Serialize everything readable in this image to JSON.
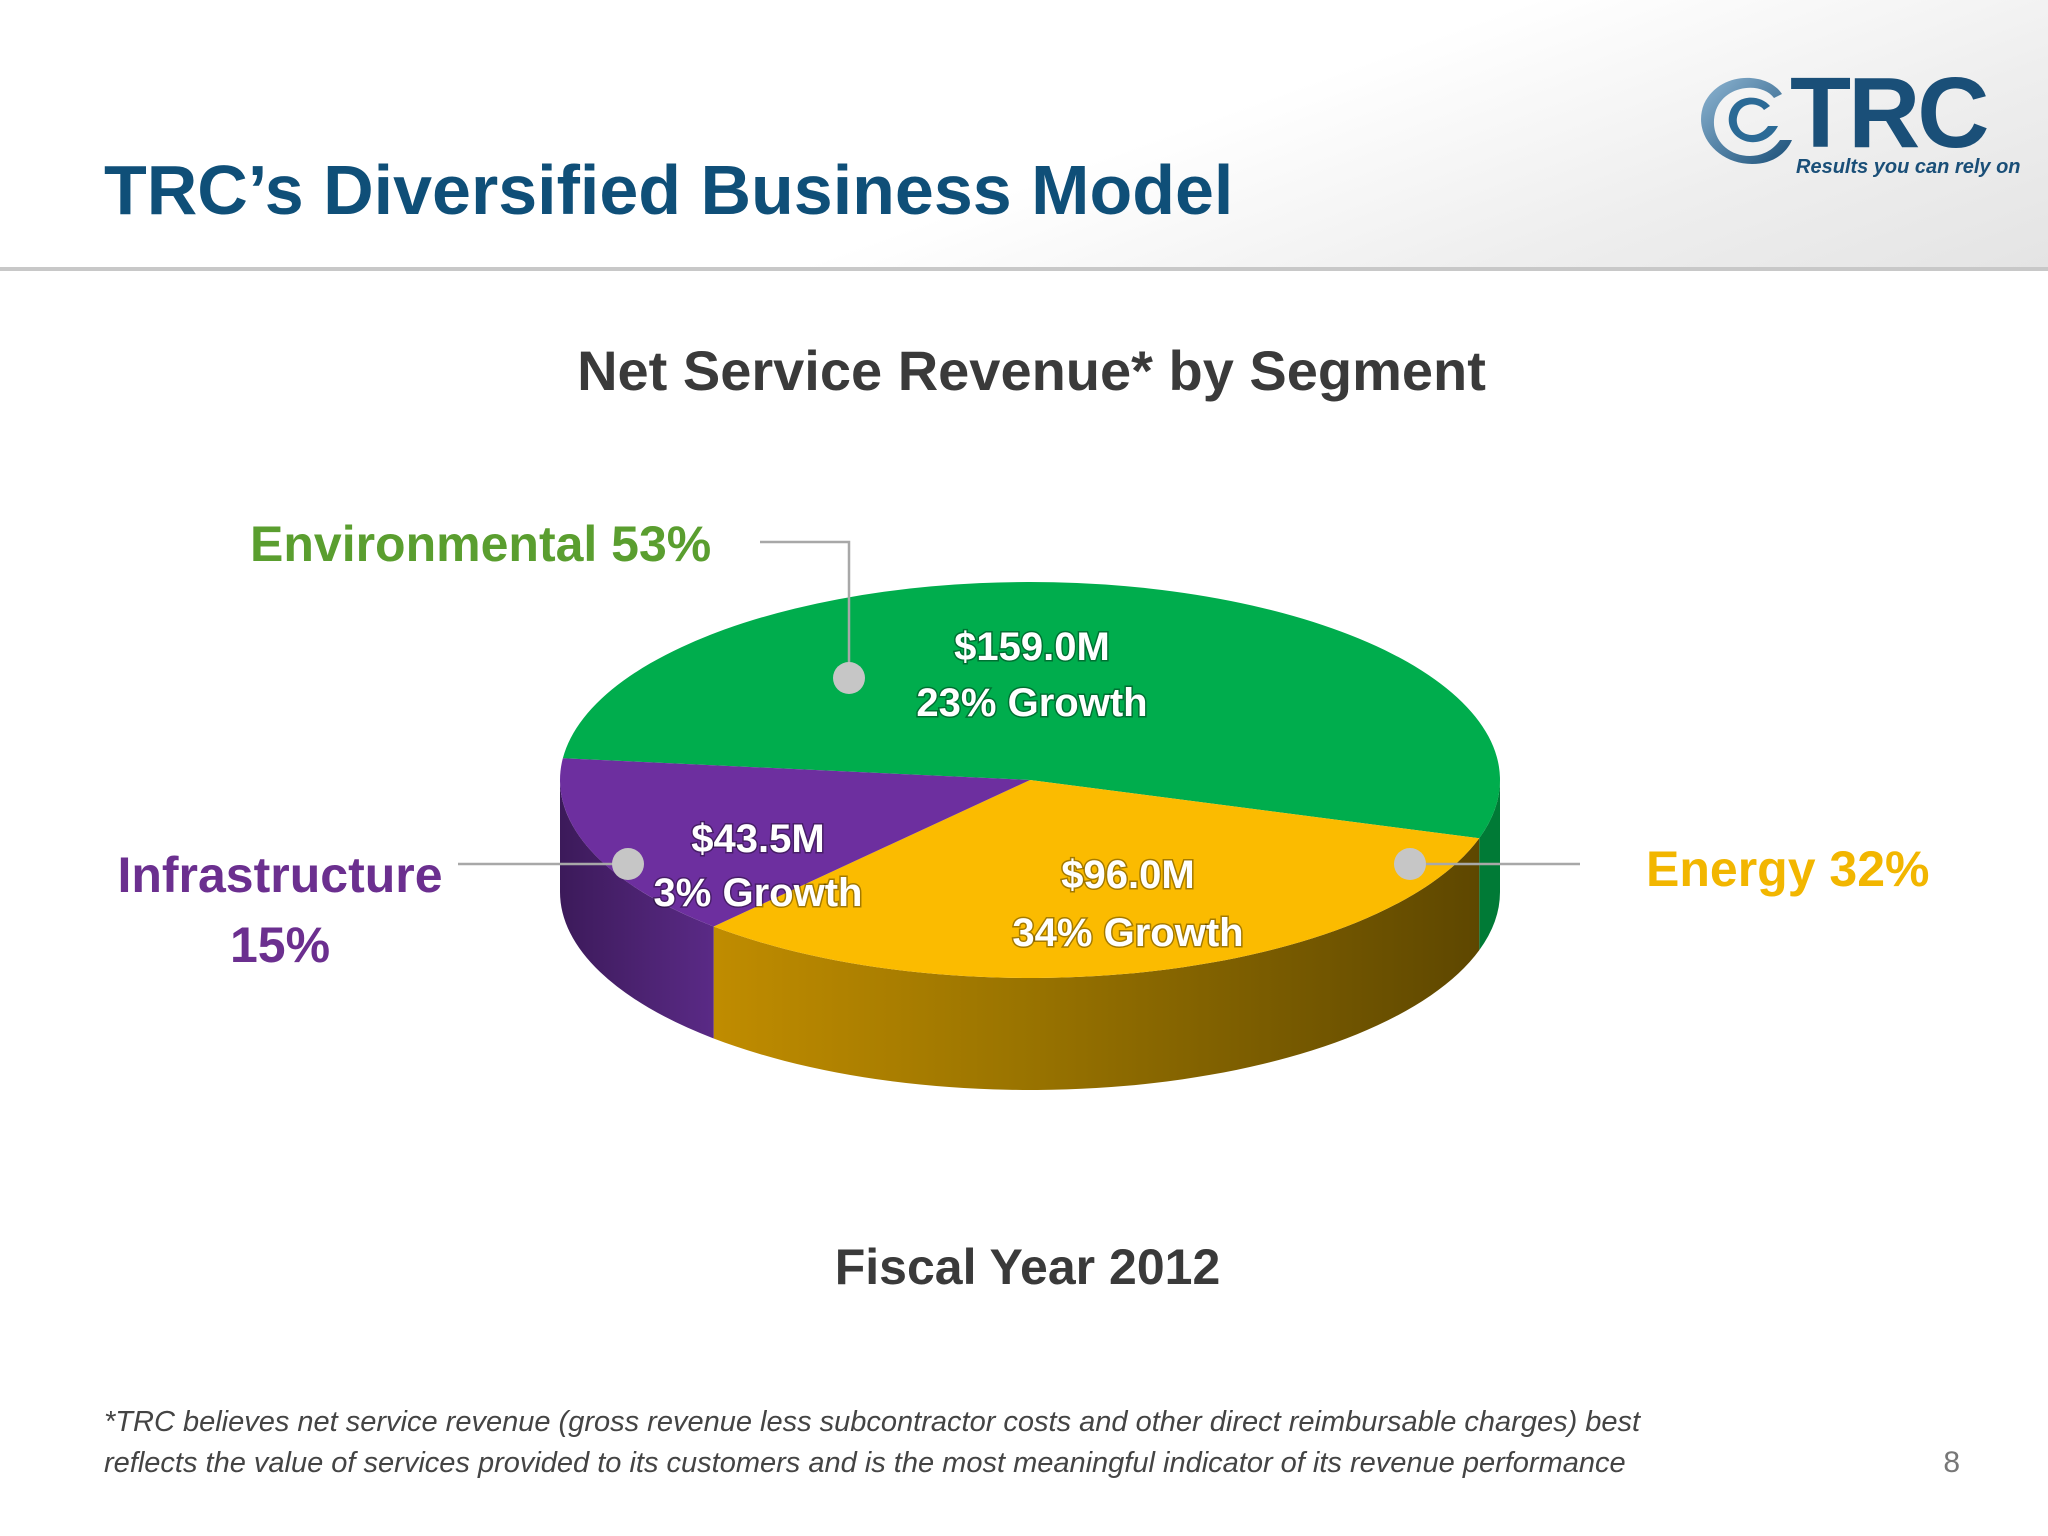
{
  "slide": {
    "title": "TRC’s Diversified Business Model",
    "page_number": "8",
    "footnote_line1": "*TRC believes net service revenue (gross revenue less subcontractor costs and other direct reimbursable charges) best",
    "footnote_line2": "reflects the value of services provided to its customers and is the most meaningful indicator of its revenue performance",
    "logo": {
      "wordmark": "TRC",
      "tagline": "Results you can rely on",
      "color": "#1a4f78"
    },
    "colors": {
      "title": "#0f4f78",
      "text": "#3a3a3a"
    }
  },
  "chart_data": {
    "type": "pie",
    "title": "Net Service Revenue* by Segment",
    "caption": "Fiscal Year 2012",
    "slices": [
      {
        "name": "Environmental",
        "percent": 53,
        "percent_label": "Environmental 53%",
        "value_label": "$159.0M",
        "growth_label": "23% Growth",
        "color": "#00ad4d",
        "label_color": "#5a9e2f"
      },
      {
        "name": "Energy",
        "percent": 32,
        "percent_label": "Energy 32%",
        "value_label": "$96.0M",
        "growth_label": "34% Growth",
        "color": "#fbbb00",
        "label_color": "#f2b600"
      },
      {
        "name": "Infrastructure",
        "percent": 15,
        "percent_label_line1": "Infrastructure",
        "percent_label_line2": "15%",
        "value_label": "$43.5M",
        "growth_label": "3% Growth",
        "color": "#6d2f9f",
        "label_color": "#6b2f8f"
      }
    ]
  }
}
